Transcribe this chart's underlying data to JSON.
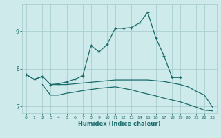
{
  "xlabel": "Humidex (Indice chaleur)",
  "bg_color": "#ceeaea",
  "grid_color": "#aacfcf",
  "line_color": "#1a6b6b",
  "xlim": [
    -0.5,
    23.5
  ],
  "ylim": [
    6.82,
    9.72
  ],
  "xticks": [
    0,
    1,
    2,
    3,
    4,
    5,
    6,
    7,
    8,
    9,
    10,
    11,
    12,
    13,
    14,
    15,
    16,
    17,
    18,
    19,
    20,
    21,
    22,
    23
  ],
  "yticks": [
    7,
    8,
    9
  ],
  "line1_x": [
    0,
    1,
    2,
    3,
    4,
    5,
    6,
    7,
    8,
    9,
    10,
    11,
    12,
    13,
    14,
    15,
    16,
    17,
    18,
    19
  ],
  "line1_y": [
    7.85,
    7.72,
    7.8,
    7.58,
    7.6,
    7.65,
    7.72,
    7.82,
    8.62,
    8.45,
    8.65,
    9.08,
    9.08,
    9.1,
    9.22,
    9.5,
    8.82,
    8.35,
    7.77,
    7.77
  ],
  "line2_x": [
    0,
    1,
    2,
    3,
    4,
    5,
    6,
    7,
    8,
    9,
    10,
    11,
    12,
    13,
    14,
    15,
    16,
    17,
    18,
    19,
    20,
    21,
    22,
    23
  ],
  "line2_y": [
    7.85,
    7.72,
    7.8,
    7.58,
    7.58,
    7.58,
    7.6,
    7.62,
    7.64,
    7.66,
    7.68,
    7.7,
    7.7,
    7.7,
    7.7,
    7.7,
    7.68,
    7.66,
    7.62,
    7.58,
    7.52,
    7.4,
    7.3,
    6.98
  ],
  "line3_x": [
    2,
    3,
    4,
    5,
    6,
    7,
    8,
    9,
    10,
    11,
    12,
    13,
    14,
    15,
    16,
    17,
    18,
    19,
    20,
    21,
    22,
    23
  ],
  "line3_y": [
    7.58,
    7.3,
    7.3,
    7.35,
    7.38,
    7.42,
    7.45,
    7.48,
    7.5,
    7.52,
    7.48,
    7.44,
    7.38,
    7.33,
    7.28,
    7.22,
    7.17,
    7.12,
    7.05,
    6.98,
    6.9,
    6.88
  ]
}
